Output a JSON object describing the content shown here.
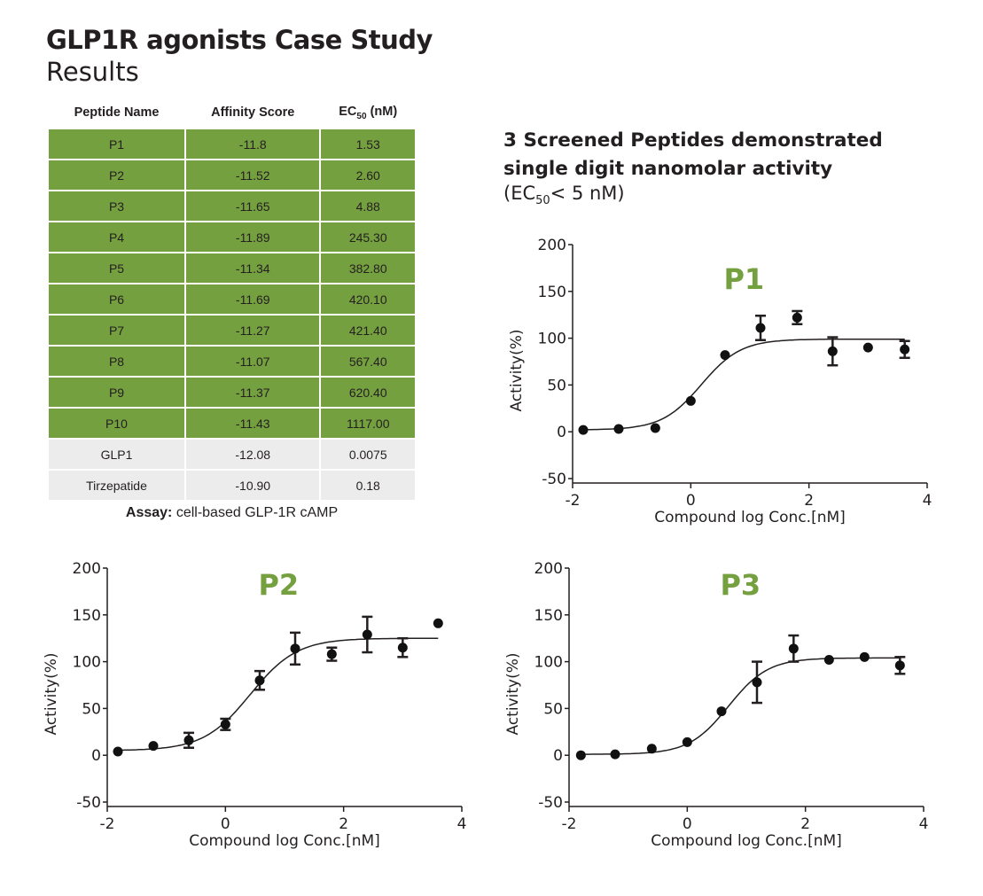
{
  "header": {
    "title": "GLP1R agonists Case Study",
    "subtitle": "Results"
  },
  "table": {
    "columns": [
      "Peptide Name",
      "Affinity Score",
      "EC",
      "50",
      " (nM)"
    ],
    "rows": [
      {
        "name": "P1",
        "affinity": "-11.8",
        "ec50": "1.53",
        "group": "screened"
      },
      {
        "name": "P2",
        "affinity": "-11.52",
        "ec50": "2.60",
        "group": "screened"
      },
      {
        "name": "P3",
        "affinity": "-11.65",
        "ec50": "4.88",
        "group": "screened"
      },
      {
        "name": "P4",
        "affinity": "-11.89",
        "ec50": "245.30",
        "group": "screened"
      },
      {
        "name": "P5",
        "affinity": "-11.34",
        "ec50": "382.80",
        "group": "screened"
      },
      {
        "name": "P6",
        "affinity": "-11.69",
        "ec50": "420.10",
        "group": "screened"
      },
      {
        "name": "P7",
        "affinity": "-11.27",
        "ec50": "421.40",
        "group": "screened"
      },
      {
        "name": "P8",
        "affinity": "-11.07",
        "ec50": "567.40",
        "group": "screened"
      },
      {
        "name": "P9",
        "affinity": "-11.37",
        "ec50": "620.40",
        "group": "screened"
      },
      {
        "name": "P10",
        "affinity": "-11.43",
        "ec50": "1117.00",
        "group": "screened"
      },
      {
        "name": "GLP1",
        "affinity": "-12.08",
        "ec50": "0.0075",
        "group": "reference"
      },
      {
        "name": "Tirzepatide",
        "affinity": "-10.90",
        "ec50": "0.18",
        "group": "reference"
      }
    ],
    "colors": {
      "screened": "#75a040",
      "reference": "#ececec"
    }
  },
  "assay": {
    "label": "Assay:",
    "text": " cell-based GLP-1R cAMP"
  },
  "right_heading": {
    "line1": "3 Screened Peptides demonstrated",
    "line2": "single digit nanomolar activity",
    "note_pre": "(EC",
    "note_sub": "50",
    "note_post": "< 5 nM)"
  },
  "chart_data": [
    {
      "type": "scatter",
      "title": "P1",
      "title_color": "#75a040",
      "xlabel": "Compound log Conc.[nM]",
      "ylabel": "Activity(%)",
      "xlim": [
        -2,
        4
      ],
      "ylim": [
        -50,
        200
      ],
      "xticks": [
        "-2",
        "0",
        "2",
        "4"
      ],
      "yticks": [
        "-50",
        "0",
        "50",
        "100",
        "150",
        "200"
      ],
      "grid": false,
      "points": [
        {
          "x": -1.82,
          "y": 2
        },
        {
          "x": -1.22,
          "y": 3
        },
        {
          "x": -0.6,
          "y": 4
        },
        {
          "x": 0,
          "y": 33
        },
        {
          "x": 0.58,
          "y": 82
        },
        {
          "x": 1.18,
          "y": 111,
          "err": 13
        },
        {
          "x": 1.8,
          "y": 122,
          "err": 7
        },
        {
          "x": 2.4,
          "y": 86,
          "err": 15
        },
        {
          "x": 3.0,
          "y": 90
        },
        {
          "x": 3.62,
          "y": 88,
          "err": 9
        }
      ],
      "curve": {
        "bottom": 2,
        "top": 99,
        "log_ec50": 0.18,
        "hill": 1.3,
        "x_range": [
          -1.82,
          3.62
        ]
      }
    },
    {
      "type": "scatter",
      "title": "P2",
      "title_color": "#75a040",
      "xlabel": "Compound log Conc.[nM]",
      "ylabel": "Activity(%)",
      "xlim": [
        -2,
        4
      ],
      "ylim": [
        -50,
        200
      ],
      "xticks": [
        "-2",
        "0",
        "2",
        "4"
      ],
      "yticks": [
        "-50",
        "0",
        "50",
        "100",
        "150",
        "200"
      ],
      "grid": false,
      "points": [
        {
          "x": -1.82,
          "y": 4
        },
        {
          "x": -1.22,
          "y": 10
        },
        {
          "x": -0.62,
          "y": 16,
          "err": 8
        },
        {
          "x": 0,
          "y": 33,
          "err": 6
        },
        {
          "x": 0.58,
          "y": 80,
          "err": 10
        },
        {
          "x": 1.18,
          "y": 114,
          "err": 17
        },
        {
          "x": 1.8,
          "y": 108,
          "err": 7
        },
        {
          "x": 2.4,
          "y": 129,
          "err": 19
        },
        {
          "x": 3.0,
          "y": 115,
          "err": 10
        },
        {
          "x": 3.6,
          "y": 141
        }
      ],
      "curve": {
        "bottom": 5,
        "top": 125,
        "log_ec50": 0.42,
        "hill": 1.1,
        "x_range": [
          -1.82,
          3.6
        ]
      }
    },
    {
      "type": "scatter",
      "title": "P3",
      "title_color": "#75a040",
      "xlabel": "Compound log Conc.[nM]",
      "ylabel": "Activity(%)",
      "xlim": [
        -2,
        4
      ],
      "ylim": [
        -50,
        200
      ],
      "xticks": [
        "-2",
        "0",
        "2",
        "4"
      ],
      "yticks": [
        "-50",
        "0",
        "50",
        "100",
        "150",
        "200"
      ],
      "grid": false,
      "points": [
        {
          "x": -1.8,
          "y": 0
        },
        {
          "x": -1.22,
          "y": 1
        },
        {
          "x": -0.6,
          "y": 7
        },
        {
          "x": 0,
          "y": 14
        },
        {
          "x": 0.58,
          "y": 47
        },
        {
          "x": 1.18,
          "y": 78,
          "err": 22
        },
        {
          "x": 1.8,
          "y": 114,
          "err": 14
        },
        {
          "x": 2.4,
          "y": 102
        },
        {
          "x": 3.0,
          "y": 105
        },
        {
          "x": 3.6,
          "y": 96,
          "err": 9
        }
      ],
      "curve": {
        "bottom": 1,
        "top": 104,
        "log_ec50": 0.7,
        "hill": 1.3,
        "x_range": [
          -1.8,
          3.6
        ]
      }
    }
  ]
}
